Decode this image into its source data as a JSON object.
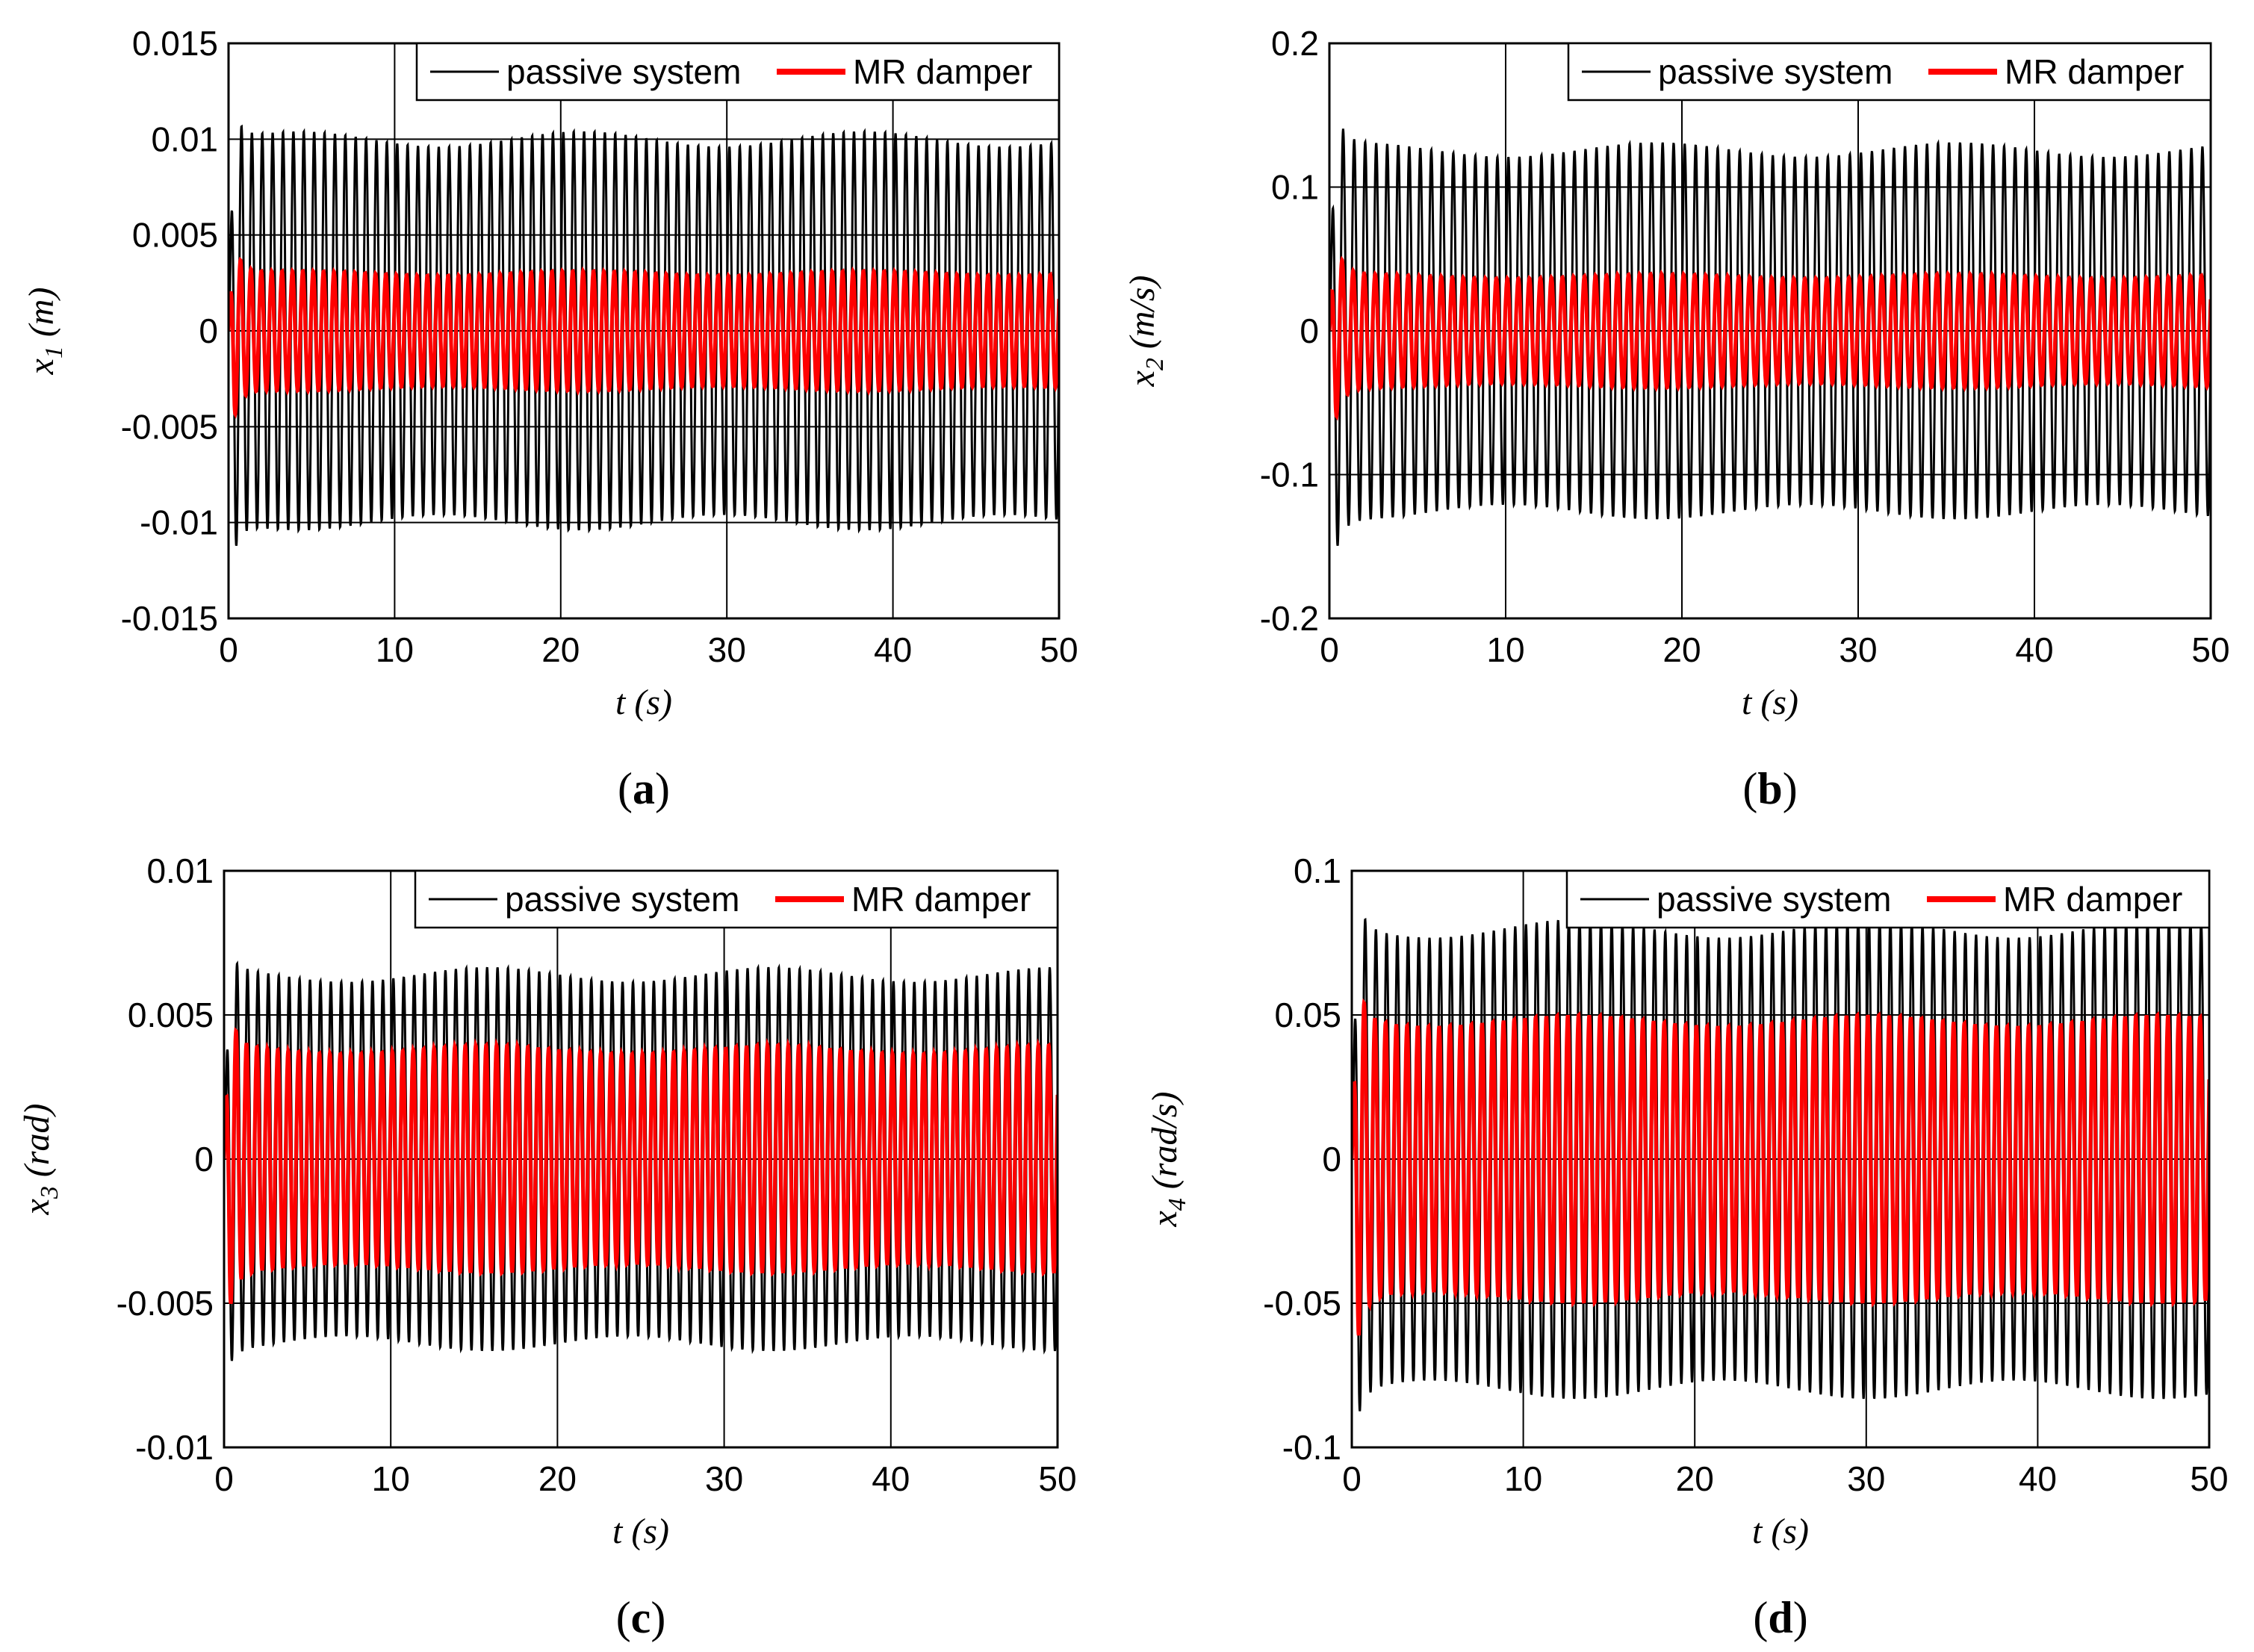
{
  "colors": {
    "passive": "#000000",
    "mr": "#ff0000",
    "grid": "#000000",
    "axis": "#000000"
  },
  "legend_entries": [
    "passive system",
    "MR damper"
  ],
  "chart_data": [
    {
      "type": "line",
      "panel_label": "a",
      "xlabel": "t (s)",
      "ylabel_var": "x",
      "ylabel_sub": "1",
      "ylabel_unit": "(m)",
      "xlim": [
        0,
        50
      ],
      "ylim": [
        -0.015,
        0.015
      ],
      "xticks": [
        0,
        10,
        20,
        30,
        40,
        50
      ],
      "xtick_labels": [
        "0",
        "10",
        "20",
        "30",
        "40",
        "50"
      ],
      "yticks": [
        -0.015,
        -0.01,
        -0.005,
        0,
        0.005,
        0.01,
        0.015
      ],
      "ytick_labels": [
        "-0.015",
        "-0.01",
        "-0.005",
        "0",
        "0.005",
        "0.01",
        "0.015"
      ],
      "grid": true,
      "legend_position": "top-right",
      "series": [
        {
          "name": "passive system",
          "steady_amplitude": 0.01,
          "peak_amplitude": 0.0115,
          "transient_end": 2.5
        },
        {
          "name": "MR damper",
          "steady_amplitude": 0.003,
          "peak_amplitude": 0.0045,
          "transient_end": 3.0
        }
      ]
    },
    {
      "type": "line",
      "panel_label": "b",
      "xlabel": "t (s)",
      "ylabel_var": "x",
      "ylabel_sub": "2",
      "ylabel_unit": "(m/s)",
      "xlim": [
        0,
        50
      ],
      "ylim": [
        -0.2,
        0.2
      ],
      "xticks": [
        0,
        10,
        20,
        30,
        40,
        50
      ],
      "xtick_labels": [
        "0",
        "10",
        "20",
        "30",
        "40",
        "50"
      ],
      "yticks": [
        -0.2,
        -0.1,
        0,
        0.1,
        0.2
      ],
      "ytick_labels": [
        "-0.2",
        "-0.1",
        "0",
        "0.1",
        "0.2"
      ],
      "grid": true,
      "legend_position": "top-right",
      "series": [
        {
          "name": "passive system",
          "steady_amplitude": 0.126,
          "peak_amplitude": 0.15,
          "transient_end": 2.5
        },
        {
          "name": "MR damper",
          "steady_amplitude": 0.038,
          "peak_amplitude": 0.06,
          "transient_end": 3.0
        }
      ]
    },
    {
      "type": "line",
      "panel_label": "c",
      "xlabel": "t (s)",
      "ylabel_var": "x",
      "ylabel_sub": "3",
      "ylabel_unit": "(rad)",
      "xlim": [
        0,
        50
      ],
      "ylim": [
        -0.01,
        0.01
      ],
      "xticks": [
        0,
        10,
        20,
        30,
        40,
        50
      ],
      "xtick_labels": [
        "0",
        "10",
        "20",
        "30",
        "40",
        "50"
      ],
      "yticks": [
        -0.01,
        -0.005,
        0,
        0.005,
        0.01
      ],
      "ytick_labels": [
        "-0.01",
        "-0.005",
        "0",
        "0.005",
        "0.01"
      ],
      "grid": true,
      "legend_position": "top-right",
      "series": [
        {
          "name": "passive system",
          "steady_amplitude": 0.0064,
          "peak_amplitude": 0.0069,
          "transient_end": 2.5
        },
        {
          "name": "MR damper",
          "steady_amplitude": 0.0038,
          "peak_amplitude": 0.005,
          "transient_end": 3.0
        }
      ]
    },
    {
      "type": "line",
      "panel_label": "d",
      "xlabel": "t (s)",
      "ylabel_var": "x",
      "ylabel_sub": "4",
      "ylabel_unit": "(rad/s)",
      "xlim": [
        0,
        50
      ],
      "ylim": [
        -0.1,
        0.1
      ],
      "xticks": [
        0,
        10,
        20,
        30,
        40,
        50
      ],
      "xtick_labels": [
        "0",
        "10",
        "20",
        "30",
        "40",
        "50"
      ],
      "yticks": [
        -0.1,
        -0.05,
        0,
        0.05,
        0.1
      ],
      "ytick_labels": [
        "-0.1",
        "-0.05",
        "0",
        "0.05",
        "0.1"
      ],
      "grid": true,
      "legend_position": "top-right",
      "series": [
        {
          "name": "passive system",
          "steady_amplitude": 0.08,
          "peak_amplitude": 0.09,
          "transient_end": 2.5
        },
        {
          "name": "MR damper",
          "steady_amplitude": 0.048,
          "peak_amplitude": 0.063,
          "transient_end": 3.0
        }
      ]
    }
  ]
}
